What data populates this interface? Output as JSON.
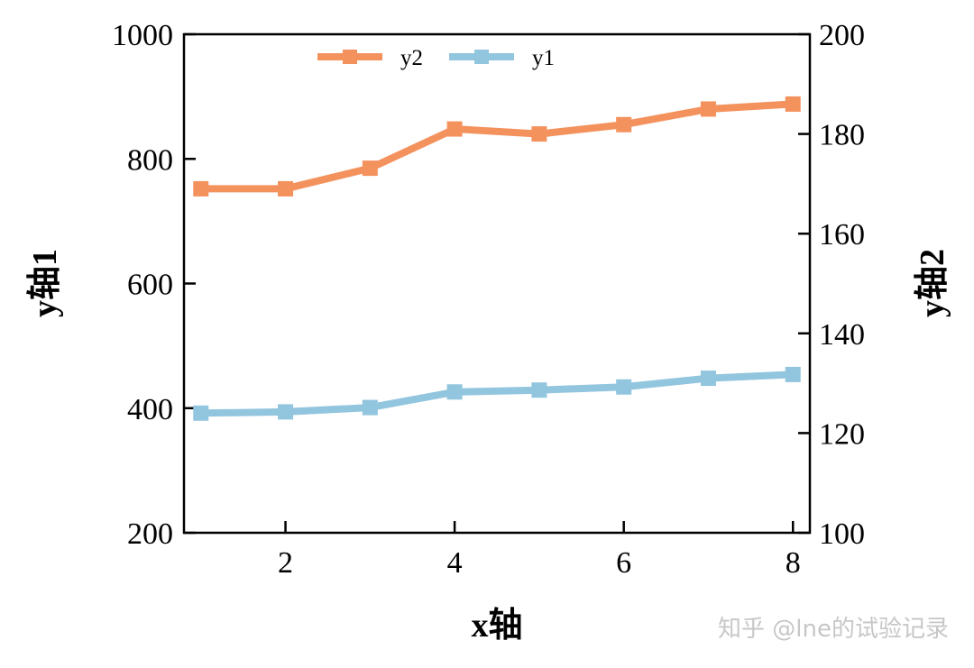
{
  "chart_data": {
    "type": "line",
    "x": [
      1,
      2,
      3,
      4,
      5,
      6,
      7,
      8
    ],
    "xlabel": "x轴",
    "ylabel_left": "y轴1",
    "ylabel_right": "y轴2",
    "xlim": [
      0.8,
      8.2
    ],
    "ylim_left": [
      200,
      1000
    ],
    "ylim_right": [
      100,
      200
    ],
    "xticks": [
      "2",
      "4",
      "6",
      "8"
    ],
    "yticks_left": [
      "200",
      "400",
      "600",
      "800",
      "1000"
    ],
    "yticks_right": [
      "100",
      "120",
      "140",
      "160",
      "180",
      "200"
    ],
    "series": [
      {
        "name": "y2",
        "axis": "left",
        "color": "#f4925e",
        "values": [
          752,
          752,
          785,
          848,
          840,
          855,
          880,
          888
        ]
      },
      {
        "name": "y1",
        "axis": "left",
        "color": "#92c5de",
        "values": [
          392,
          394,
          401,
          426,
          429,
          434,
          448,
          454
        ]
      }
    ],
    "legend_position": "top-center",
    "grid": false
  },
  "watermark": "知乎 @lne的试验记录"
}
